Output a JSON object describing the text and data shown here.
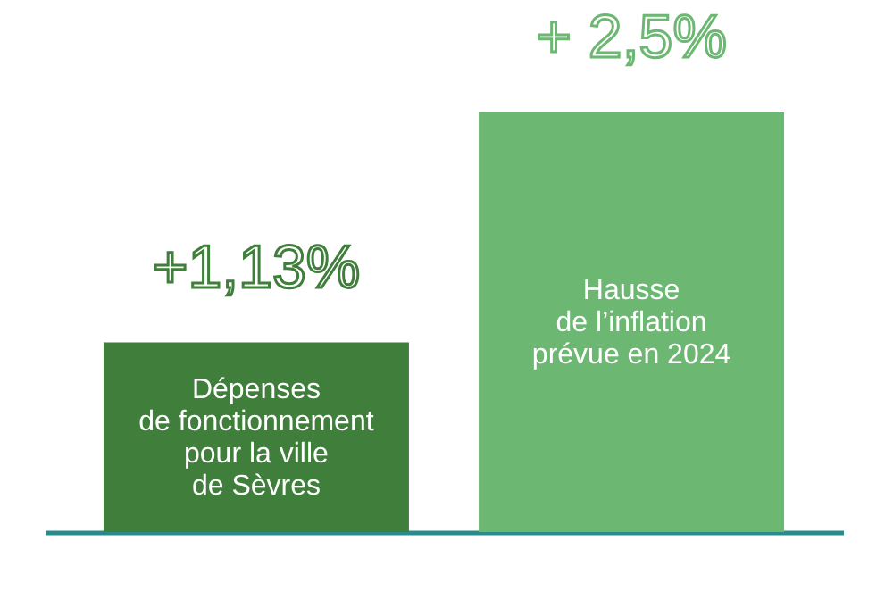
{
  "chart_data": {
    "type": "bar",
    "categories": [
      "Dépenses\nde fonctionnement\npour la ville\nde Sèvres",
      "Hausse\nde l’inflation\nprévue en 2024"
    ],
    "values": [
      1.13,
      2.5
    ],
    "colors": [
      "#3f7e3b",
      "#6cb772"
    ],
    "value_labels": [
      "+1,13%",
      "+ 2,5%"
    ],
    "grid": false
  }
}
